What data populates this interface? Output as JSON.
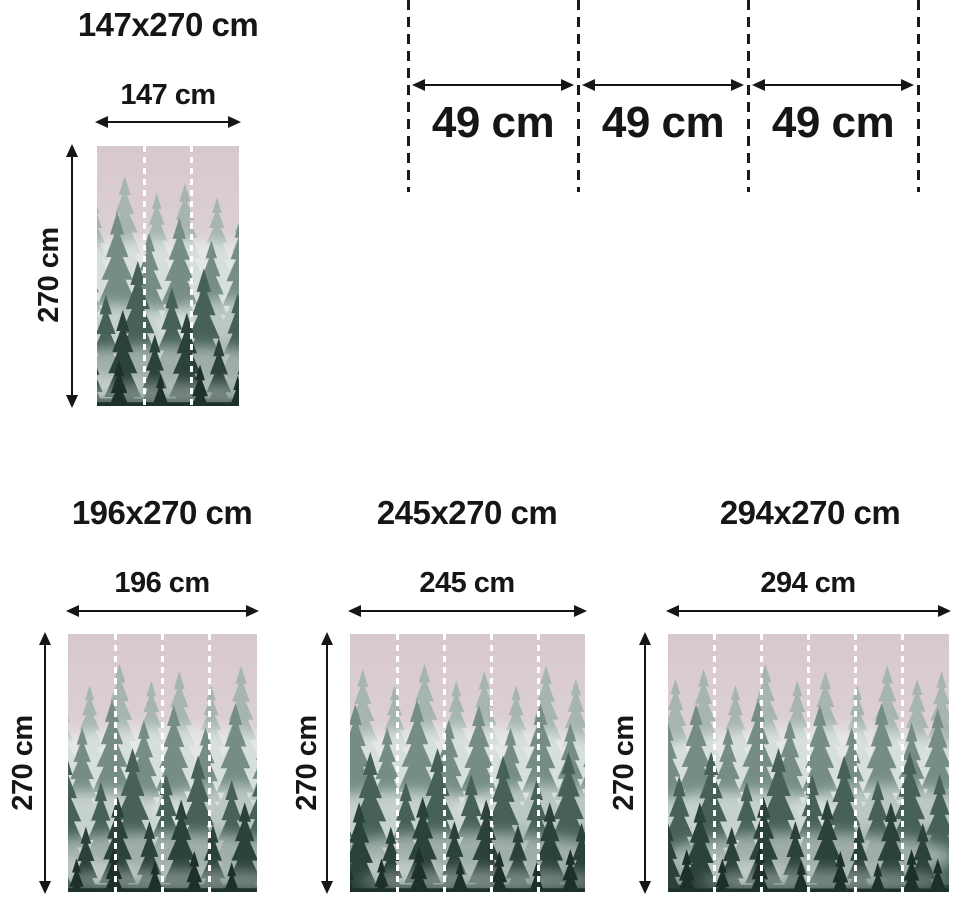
{
  "artwork": {
    "name": "misty-forest-wall-mural",
    "description": "Foggy evergreen forest photograph divided into 49 cm wide panels by white dashed cut lines",
    "colors": {
      "sky_top": "#d7c8ce",
      "sky_mid": "#ddd2d4",
      "sky_low": "#c6cfca",
      "trees_far": "#9db1aa",
      "trees_mid": "#758d86",
      "trees_near": "#47615a",
      "trees_dark": "#2b413b",
      "trees_deep": "#1e302b",
      "fog": "#e8eeec",
      "cut_line": "#ffffff",
      "annotation": "#161616"
    }
  },
  "strip": {
    "description": "panel width detail with dashed cut lines",
    "segments": [
      {
        "label": "49 cm"
      },
      {
        "label": "49 cm"
      },
      {
        "label": "49 cm"
      }
    ]
  },
  "sizes": [
    {
      "title": "147x270 cm",
      "width_label": "147 cm",
      "height_label": "270 cm",
      "panels": 3
    },
    {
      "title": "196x270 cm",
      "width_label": "196 cm",
      "height_label": "270 cm",
      "panels": 4
    },
    {
      "title": "245x270 cm",
      "width_label": "245 cm",
      "height_label": "270 cm",
      "panels": 5
    },
    {
      "title": "294x270 cm",
      "width_label": "294 cm",
      "height_label": "270 cm",
      "panels": 6
    }
  ]
}
